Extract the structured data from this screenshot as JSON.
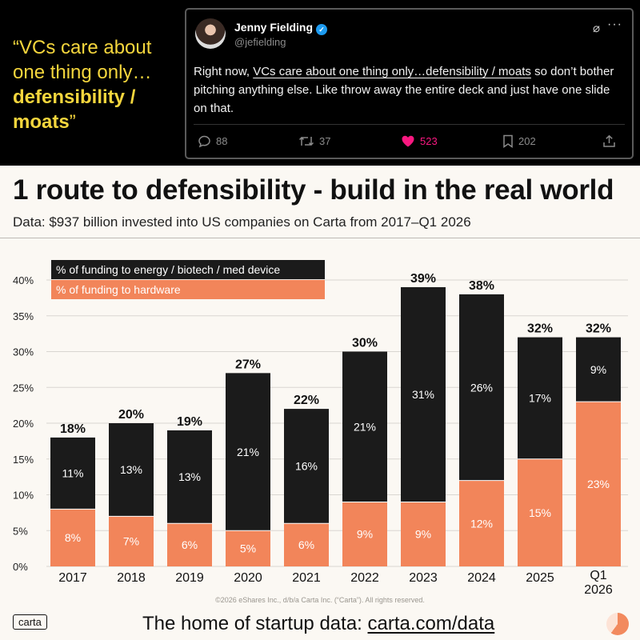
{
  "quote": {
    "part1": "“VCs care about one thing only…",
    "part2": "defensibility / moats",
    "part3": "”"
  },
  "tweet": {
    "author": "Jenny Fielding",
    "handle": "@jefielding",
    "text_pre": "Right now, ",
    "text_underlined": "VCs care about one thing only…defensibility / moats",
    "text_post": " so don’t bother pitching anything else. Like throw away the entire deck and just have one slide on that.",
    "replies": "88",
    "retweets": "37",
    "likes": "523",
    "bookmarks": "202",
    "icons": [
      "reply-icon",
      "retweet-icon",
      "heart-icon",
      "bookmark-icon",
      "share-icon",
      "grok-icon",
      "more-icon",
      "verified-icon"
    ]
  },
  "title": "1 route to defensibility - build in the real world",
  "subtitle": "Data: $937 billion invested into US companies on Carta from 2017–Q1 2026",
  "copyright": "©2026 eShares Inc., d/b/a Carta Inc. (“Carta”). All rights reserved.",
  "footer": {
    "logo": "carta",
    "text": "The home of startup data: ",
    "link": "carta.com/data"
  },
  "colors": {
    "hardware": "#f2855a",
    "energy": "#1b1b1b",
    "accent_yellow": "#f5d63d",
    "like_pink": "#f91880"
  },
  "chart_data": {
    "type": "bar",
    "stacked": true,
    "categories": [
      "2017",
      "2018",
      "2019",
      "2020",
      "2021",
      "2022",
      "2023",
      "2024",
      "2025",
      "Q1 2026"
    ],
    "series": [
      {
        "name": "% of funding to hardware",
        "values": [
          8,
          7,
          6,
          5,
          6,
          9,
          9,
          12,
          15,
          23
        ],
        "labels": [
          "8%",
          "7%",
          "6%",
          "5%",
          "6%",
          "9%",
          "9%",
          "12%",
          "15%",
          "23%"
        ]
      },
      {
        "name": "% of funding to energy / biotech / med device",
        "values": [
          11,
          13,
          13,
          21,
          16,
          21,
          31,
          26,
          17,
          9
        ],
        "labels": [
          "11%",
          "13%",
          "13%",
          "21%",
          "16%",
          "21%",
          "31%",
          "26%",
          "17%",
          "9%"
        ]
      }
    ],
    "totals": [
      18,
      20,
      19,
      27,
      22,
      30,
      39,
      38,
      32,
      32
    ],
    "total_labels": [
      "18%",
      "20%",
      "19%",
      "27%",
      "22%",
      "30%",
      "39%",
      "38%",
      "32%",
      "32%"
    ],
    "yticks": [
      "0%",
      "5%",
      "10%",
      "15%",
      "20%",
      "25%",
      "30%",
      "35%",
      "40%"
    ],
    "ylim": [
      0,
      40
    ],
    "grid": true,
    "legend": "top-left",
    "legend_order": [
      "% of funding to energy / biotech / med device",
      "% of funding to hardware"
    ]
  }
}
